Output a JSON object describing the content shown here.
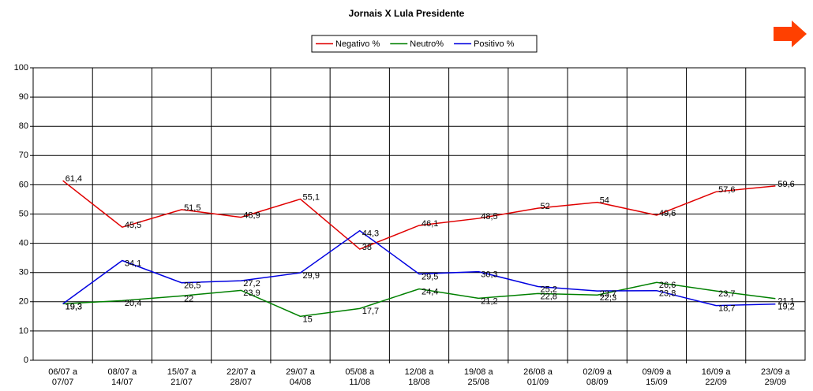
{
  "chart_data": {
    "type": "line",
    "title": "Jornais X Lula Presidente",
    "categories": [
      [
        "06/07 a",
        "07/07"
      ],
      [
        "08/07 a",
        "14/07"
      ],
      [
        "15/07 a",
        "21/07"
      ],
      [
        "22/07 a",
        "28/07"
      ],
      [
        "29/07 a",
        "04/08"
      ],
      [
        "05/08 a",
        "11/08"
      ],
      [
        "12/08 a",
        "18/08"
      ],
      [
        "19/08 a",
        "25/08"
      ],
      [
        "26/08 a",
        "01/09"
      ],
      [
        "02/09 a",
        "08/09"
      ],
      [
        "09/09 a",
        "15/09"
      ],
      [
        "16/09 a",
        "22/09"
      ],
      [
        "23/09 a",
        "29/09"
      ]
    ],
    "series": [
      {
        "name": "Negativo %",
        "color": "#e00000",
        "values": [
          61.4,
          45.5,
          51.5,
          48.9,
          55.1,
          38,
          46.1,
          48.5,
          52,
          54,
          49.6,
          57.6,
          59.6
        ],
        "value_labels": [
          "61,4",
          "45,5",
          "51,5",
          "48,9",
          "55,1",
          "38",
          "46,1",
          "48,5",
          "52",
          "54",
          "49,6",
          "57,6",
          "59,6"
        ]
      },
      {
        "name": "Neutro%",
        "color": "#008000",
        "values": [
          19.3,
          20.4,
          22,
          23.9,
          15,
          17.7,
          24.4,
          21.2,
          22.8,
          22.3,
          26.6,
          23.7,
          21.1
        ],
        "value_labels": [
          "19,3",
          "20,4",
          "22",
          "23,9",
          "15",
          "17,7",
          "24,4",
          "21,2",
          "22,8",
          "22,3",
          "26,6",
          "23,7",
          "21,1"
        ]
      },
      {
        "name": "Positivo %",
        "color": "#0000e0",
        "values": [
          19.3,
          34.1,
          26.5,
          27.2,
          29.9,
          44.3,
          29.5,
          30.3,
          25.2,
          23.7,
          23.8,
          18.7,
          19.2
        ],
        "value_labels": [
          "19,3",
          "34,1",
          "26,5",
          "27,2",
          "29,9",
          "44,3",
          "29,5",
          "30,3",
          "25,2",
          "23,7",
          "23,8",
          "18,7",
          "19,2"
        ]
      }
    ],
    "ylim": [
      0,
      100
    ],
    "yticks": [
      0,
      10,
      20,
      30,
      40,
      50,
      60,
      70,
      80,
      90,
      100
    ],
    "grid": true
  }
}
